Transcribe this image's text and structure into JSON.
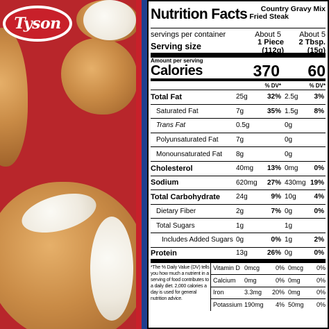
{
  "brand": {
    "logo_text": "Tyson"
  },
  "label": {
    "title": "Nutrition Facts",
    "columns": [
      "Country Fried Steak",
      "Gravy Mix"
    ],
    "servings_label": "servings per container",
    "servings": [
      "About 5",
      "About 5"
    ],
    "serving_size_label": "Serving size",
    "serving_size": [
      "1 Piece (112g)",
      "2 Tbsp. (15g)"
    ],
    "amount_per_serving": "Amount per serving",
    "calories_label": "Calories",
    "calories": [
      "370",
      "60"
    ],
    "dv_header": "% DV*",
    "nutrients": [
      {
        "name": "Total Fat",
        "v1": "25g",
        "p1": "32%",
        "v2": "2.5g",
        "p2": "3%"
      },
      {
        "name": "Saturated Fat",
        "v1": "7g",
        "p1": "35%",
        "v2": "1.5g",
        "p2": "8%"
      },
      {
        "name": "Trans Fat",
        "v1": "0.5g",
        "p1": "",
        "v2": "0g",
        "p2": ""
      },
      {
        "name": "Polyunsaturated Fat",
        "v1": "7g",
        "p1": "",
        "v2": "0g",
        "p2": ""
      },
      {
        "name": "Monounsaturated Fat",
        "v1": "8g",
        "p1": "",
        "v2": "0g",
        "p2": ""
      },
      {
        "name": "Cholesterol",
        "v1": "40mg",
        "p1": "13%",
        "v2": "0mg",
        "p2": "0%"
      },
      {
        "name": "Sodium",
        "v1": "620mg",
        "p1": "27%",
        "v2": "430mg",
        "p2": "19%"
      },
      {
        "name": "Total Carbohydrate",
        "v1": "24g",
        "p1": "9%",
        "v2": "10g",
        "p2": "4%"
      },
      {
        "name": "Dietary Fiber",
        "v1": "2g",
        "p1": "7%",
        "v2": "0g",
        "p2": "0%"
      },
      {
        "name": "Total Sugars",
        "v1": "1g",
        "p1": "",
        "v2": "1g",
        "p2": ""
      },
      {
        "name": "Includes Added Sugars",
        "v1": "0g",
        "p1": "0%",
        "v2": "1g",
        "p2": "2%"
      },
      {
        "name": "Protein",
        "v1": "13g",
        "p1": "26%",
        "v2": "0g",
        "p2": "0%"
      }
    ],
    "footnote": "*The % Daily Value (DV) tells you how much a nutrient in a serving of food contributes to a daily diet. 2,000 calories a day is used for general nutrition advice.",
    "vitamins": [
      {
        "name": "Vitamin D",
        "v1": "0mcg",
        "p1": "0%",
        "v2": "0mcg",
        "p2": "0%"
      },
      {
        "name": "Calcium",
        "v1": "0mg",
        "p1": "0%",
        "v2": "0mg",
        "p2": "0%"
      },
      {
        "name": "Iron",
        "v1": "3.3mg",
        "p1": "20%",
        "v2": "0mg",
        "p2": "0%"
      },
      {
        "name": "Potassium",
        "v1": "190mg",
        "p1": "4%",
        "v2": "50mg",
        "p2": "0%"
      }
    ]
  }
}
